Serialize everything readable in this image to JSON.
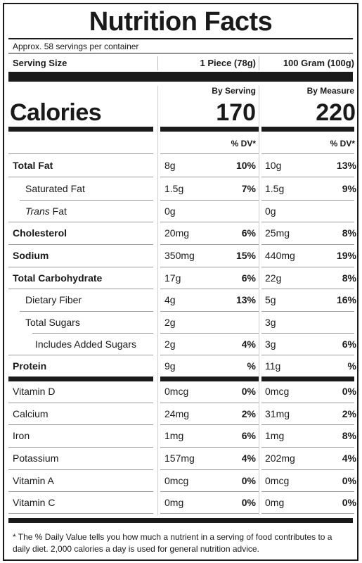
{
  "title": "Nutrition Facts",
  "servings_text": "Approx. 58 servings per container",
  "serving_size": {
    "label": "Serving Size",
    "col1": "1 Piece (78g)",
    "col2": "100 Gram (100g)"
  },
  "calories": {
    "label": "Calories",
    "col1_header": "By Serving",
    "col2_header": "By Measure",
    "col1_value": "170",
    "col2_value": "220"
  },
  "dv_header": "% DV*",
  "nutrients": [
    {
      "name": "Total Fat",
      "a1": "8g",
      "p1": "10%",
      "a2": "10g",
      "p2": "13%"
    },
    {
      "name": "Saturated Fat",
      "a1": "1.5g",
      "p1": "7%",
      "a2": "1.5g",
      "p2": "9%"
    },
    {
      "name_italic": "Trans",
      "name": " Fat",
      "a1": "0g",
      "p1": "",
      "a2": "0g",
      "p2": ""
    },
    {
      "name": "Cholesterol",
      "a1": "20mg",
      "p1": "6%",
      "a2": "25mg",
      "p2": "8%"
    },
    {
      "name": "Sodium",
      "a1": "350mg",
      "p1": "15%",
      "a2": "440mg",
      "p2": "19%"
    },
    {
      "name": "Total Carbohydrate",
      "a1": "17g",
      "p1": "6%",
      "a2": "22g",
      "p2": "8%"
    },
    {
      "name": "Dietary Fiber",
      "a1": "4g",
      "p1": "13%",
      "a2": "5g",
      "p2": "16%"
    },
    {
      "name": "Total Sugars",
      "a1": "2g",
      "p1": "",
      "a2": "3g",
      "p2": ""
    },
    {
      "name": "Includes Added Sugars",
      "a1": "2g",
      "p1": "4%",
      "a2": "3g",
      "p2": "6%"
    },
    {
      "name": "Protein",
      "a1": "9g",
      "p1": "%",
      "a2": "11g",
      "p2": "%"
    }
  ],
  "vitamins": [
    {
      "name": "Vitamin D",
      "a1": "0mcg",
      "p1": "0%",
      "a2": "0mcg",
      "p2": "0%"
    },
    {
      "name": "Calcium",
      "a1": "24mg",
      "p1": "2%",
      "a2": "31mg",
      "p2": "2%"
    },
    {
      "name": "Iron",
      "a1": "1mg",
      "p1": "6%",
      "a2": "1mg",
      "p2": "8%"
    },
    {
      "name": "Potassium",
      "a1": "157mg",
      "p1": "4%",
      "a2": "202mg",
      "p2": "4%"
    },
    {
      "name": "Vitamin A",
      "a1": "0mcg",
      "p1": "0%",
      "a2": "0mcg",
      "p2": "0%"
    },
    {
      "name": "Vitamin C",
      "a1": "0mg",
      "p1": "0%",
      "a2": "0mg",
      "p2": "0%"
    }
  ],
  "footnote": "* The % Daily Value tells you how much a nutrient in a serving of food contributes to a daily diet. 2,000 calories a day is used for general nutrition advice."
}
